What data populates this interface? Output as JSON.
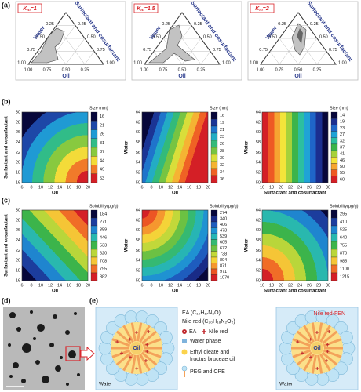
{
  "panel_labels": [
    "(a)",
    "(b)",
    "(c)",
    "(d)",
    "(e)"
  ],
  "ternary": {
    "symbol": "K",
    "subscript": "m",
    "plots": [
      {
        "value": "=1"
      },
      {
        "value": "=1.5"
      },
      {
        "value": "=2"
      }
    ],
    "ticks": [
      "0.25",
      "0.50",
      "0.75",
      "1.00"
    ],
    "water": "Water",
    "surfactant": "Surfactant and cosurfactant",
    "oil": "Oil"
  },
  "contours": [
    {
      "plots": [
        {
          "colorbar_title": "Size (nm)",
          "y_title": "Surfactant and cosurfactant",
          "x_title": "Oil",
          "yticks": [
            16,
            18,
            20,
            22,
            24,
            26,
            28,
            30
          ],
          "xticks": [
            6,
            8,
            10,
            12,
            14,
            16,
            18,
            20
          ],
          "levels": [
            16,
            21,
            26,
            31,
            37,
            44,
            49,
            53
          ]
        },
        {
          "colorbar_title": "Size (nm)",
          "y_title": "Water",
          "x_title": "Oil",
          "yticks": [
            50,
            52,
            54,
            56,
            58,
            60,
            62,
            64
          ],
          "xticks": [
            6,
            8,
            10,
            12,
            14,
            16,
            18,
            20
          ],
          "levels": [
            16,
            19,
            21,
            23,
            26,
            28,
            30,
            32,
            34,
            36
          ]
        },
        {
          "colorbar_title": "Size (nm)",
          "y_title": "Water",
          "x_title": "Surfactant and cosurfactant",
          "yticks": [
            50,
            52,
            54,
            56,
            58,
            60,
            62,
            64
          ],
          "xticks": [
            16,
            18,
            20,
            22,
            24,
            26,
            28,
            30
          ],
          "levels": [
            14,
            19,
            23,
            27,
            32,
            37,
            41,
            46,
            50,
            55,
            60
          ]
        }
      ]
    },
    {
      "plots": [
        {
          "colorbar_title": "Solubility(μg/g)",
          "y_title": "Surfactant and cosurfactant",
          "x_title": "Oil",
          "yticks": [
            16,
            18,
            20,
            22,
            24,
            26,
            28,
            30
          ],
          "xticks": [
            6,
            8,
            10,
            12,
            14,
            16,
            18,
            20
          ],
          "levels": [
            184,
            271,
            359,
            446,
            533,
            620,
            708,
            795,
            882
          ]
        },
        {
          "colorbar_title": "Solubility(μg/g)",
          "y_title": "Water",
          "x_title": "Oil",
          "yticks": [
            50,
            52,
            54,
            56,
            58,
            60,
            62,
            64
          ],
          "xticks": [
            6,
            8,
            10,
            12,
            14,
            16,
            18,
            20
          ],
          "levels": [
            274,
            340,
            406,
            473,
            539,
            605,
            672,
            738,
            804,
            871,
            971,
            1070
          ]
        },
        {
          "colorbar_title": "Solubility(μg/g)",
          "y_title": "Water",
          "x_title": "Surfactant and cosurfactant",
          "yticks": [
            50,
            52,
            54,
            56,
            58,
            60,
            62,
            64
          ],
          "xticks": [
            16,
            18,
            20,
            22,
            24,
            26,
            28,
            30
          ],
          "levels": [
            295,
            410,
            525,
            640,
            755,
            870,
            985,
            1100,
            1215
          ]
        }
      ]
    }
  ],
  "legend": {
    "ea_formula": "EA (C₁₉H₁₇N₃O)",
    "nile_formula": "Nile red (C₂₀H₁₈N₂O₂)",
    "ea": "EA",
    "nile": "Nile red",
    "water_phase": "Water phase",
    "oil_lines": [
      "Ethyl oleate and",
      "fructus bruceae oil"
    ],
    "peg": "PEG and CPE"
  },
  "droplet": {
    "oil": "Oil",
    "water": "Water",
    "fen": "Nile red-FEN"
  }
}
